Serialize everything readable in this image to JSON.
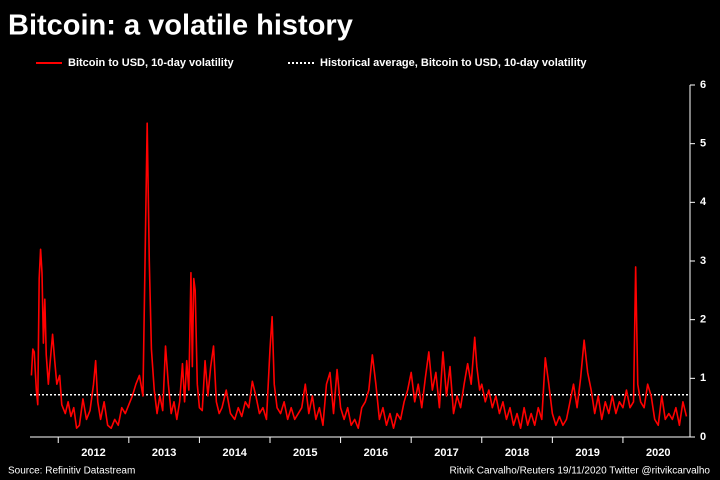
{
  "chart_data": {
    "type": "line",
    "title": "Bitcoin: a volatile history",
    "source": "Source: Refinitiv Datastream",
    "credit": "Ritvik Carvalho/Reuters 19/11/2020 Twitter @ritvikcarvalho",
    "xlim": [
      2011.6,
      2020.95
    ],
    "xticks": [
      2012,
      2013,
      2014,
      2015,
      2016,
      2017,
      2018,
      2019,
      2020
    ],
    "ylim": [
      0,
      6
    ],
    "yticks": [
      0,
      1,
      2,
      3,
      4,
      5,
      6
    ],
    "x": [
      2011.62,
      2011.64,
      2011.66,
      2011.69,
      2011.71,
      2011.73,
      2011.75,
      2011.77,
      2011.79,
      2011.81,
      2011.83,
      2011.86,
      2011.88,
      2011.92,
      2011.95,
      2011.98,
      2012.02,
      2012.05,
      2012.1,
      2012.14,
      2012.18,
      2012.22,
      2012.26,
      2012.3,
      2012.35,
      2012.4,
      2012.45,
      2012.5,
      2012.53,
      2012.56,
      2012.6,
      2012.65,
      2012.7,
      2012.75,
      2012.8,
      2012.85,
      2012.9,
      2012.95,
      2013.0,
      2013.05,
      2013.1,
      2013.15,
      2013.2,
      2013.26,
      2013.29,
      2013.32,
      2013.36,
      2013.4,
      2013.44,
      2013.48,
      2013.52,
      2013.56,
      2013.6,
      2013.64,
      2013.68,
      2013.72,
      2013.76,
      2013.79,
      2013.82,
      2013.85,
      2013.88,
      2013.9,
      2013.92,
      2013.94,
      2013.97,
      2014.0,
      2014.04,
      2014.08,
      2014.12,
      2014.16,
      2014.2,
      2014.24,
      2014.28,
      2014.32,
      2014.38,
      2014.44,
      2014.5,
      2014.55,
      2014.6,
      2014.65,
      2014.7,
      2014.75,
      2014.8,
      2014.85,
      2014.9,
      2014.95,
      2015.0,
      2015.03,
      2015.06,
      2015.1,
      2015.15,
      2015.2,
      2015.25,
      2015.3,
      2015.35,
      2015.4,
      2015.45,
      2015.5,
      2015.55,
      2015.6,
      2015.65,
      2015.7,
      2015.75,
      2015.8,
      2015.85,
      2015.9,
      2015.95,
      2016.0,
      2016.05,
      2016.1,
      2016.15,
      2016.2,
      2016.25,
      2016.3,
      2016.35,
      2016.4,
      2016.45,
      2016.5,
      2016.55,
      2016.6,
      2016.65,
      2016.7,
      2016.75,
      2016.8,
      2016.85,
      2016.9,
      2016.95,
      2017.0,
      2017.05,
      2017.1,
      2017.15,
      2017.2,
      2017.25,
      2017.3,
      2017.35,
      2017.4,
      2017.45,
      2017.5,
      2017.55,
      2017.6,
      2017.65,
      2017.7,
      2017.75,
      2017.8,
      2017.85,
      2017.9,
      2017.93,
      2017.97,
      2018.0,
      2018.05,
      2018.1,
      2018.15,
      2018.2,
      2018.25,
      2018.3,
      2018.35,
      2018.4,
      2018.45,
      2018.5,
      2018.55,
      2018.6,
      2018.65,
      2018.7,
      2018.75,
      2018.8,
      2018.85,
      2018.9,
      2018.95,
      2019.0,
      2019.05,
      2019.1,
      2019.15,
      2019.2,
      2019.25,
      2019.3,
      2019.35,
      2019.4,
      2019.45,
      2019.5,
      2019.55,
      2019.6,
      2019.65,
      2019.7,
      2019.75,
      2019.8,
      2019.85,
      2019.9,
      2019.95,
      2020.0,
      2020.05,
      2020.1,
      2020.15,
      2020.18,
      2020.21,
      2020.25,
      2020.3,
      2020.35,
      2020.4,
      2020.45,
      2020.5,
      2020.55,
      2020.6,
      2020.65,
      2020.7,
      2020.75,
      2020.8,
      2020.85,
      2020.9
    ],
    "series": [
      {
        "name": "Bitcoin to USD, 10-day volatility",
        "color": "#ff0000",
        "values": [
          1.05,
          1.5,
          1.45,
          0.8,
          0.55,
          2.7,
          3.2,
          2.8,
          1.6,
          2.35,
          1.4,
          0.9,
          1.2,
          1.75,
          1.3,
          0.9,
          1.05,
          0.55,
          0.4,
          0.6,
          0.35,
          0.5,
          0.15,
          0.2,
          0.65,
          0.3,
          0.45,
          0.9,
          1.3,
          0.6,
          0.3,
          0.6,
          0.2,
          0.15,
          0.3,
          0.2,
          0.5,
          0.4,
          0.55,
          0.7,
          0.9,
          1.05,
          0.7,
          5.35,
          3.0,
          1.5,
          0.8,
          0.4,
          0.7,
          0.45,
          1.55,
          0.9,
          0.4,
          0.6,
          0.3,
          0.6,
          1.25,
          0.6,
          1.3,
          0.8,
          2.8,
          1.2,
          2.7,
          2.5,
          0.9,
          0.5,
          0.45,
          1.3,
          0.7,
          1.2,
          1.55,
          0.6,
          0.4,
          0.5,
          0.8,
          0.4,
          0.3,
          0.5,
          0.35,
          0.6,
          0.5,
          0.95,
          0.7,
          0.4,
          0.5,
          0.3,
          1.5,
          2.05,
          0.9,
          0.5,
          0.4,
          0.6,
          0.3,
          0.5,
          0.3,
          0.4,
          0.5,
          0.9,
          0.4,
          0.7,
          0.3,
          0.5,
          0.2,
          0.9,
          1.1,
          0.4,
          1.15,
          0.5,
          0.3,
          0.5,
          0.2,
          0.3,
          0.15,
          0.5,
          0.6,
          0.8,
          1.4,
          0.9,
          0.3,
          0.5,
          0.2,
          0.4,
          0.15,
          0.4,
          0.3,
          0.6,
          0.8,
          1.1,
          0.6,
          0.9,
          0.5,
          1.0,
          1.45,
          0.8,
          1.1,
          0.5,
          1.45,
          0.7,
          1.2,
          0.4,
          0.7,
          0.5,
          0.9,
          1.25,
          0.9,
          1.7,
          1.2,
          0.8,
          0.9,
          0.6,
          0.8,
          0.5,
          0.7,
          0.4,
          0.6,
          0.3,
          0.5,
          0.2,
          0.4,
          0.15,
          0.5,
          0.2,
          0.4,
          0.2,
          0.5,
          0.3,
          1.35,
          0.9,
          0.4,
          0.2,
          0.35,
          0.2,
          0.3,
          0.6,
          0.9,
          0.5,
          1.0,
          1.65,
          1.1,
          0.8,
          0.4,
          0.7,
          0.3,
          0.6,
          0.4,
          0.7,
          0.4,
          0.6,
          0.5,
          0.8,
          0.5,
          0.6,
          2.9,
          0.9,
          0.6,
          0.5,
          0.9,
          0.7,
          0.3,
          0.2,
          0.7,
          0.3,
          0.4,
          0.3,
          0.5,
          0.2,
          0.6,
          0.35
        ]
      }
    ],
    "average": {
      "name": "Historical average, Bitcoin to USD, 10-day volatility",
      "value": 0.72,
      "color": "#ffffff"
    }
  }
}
